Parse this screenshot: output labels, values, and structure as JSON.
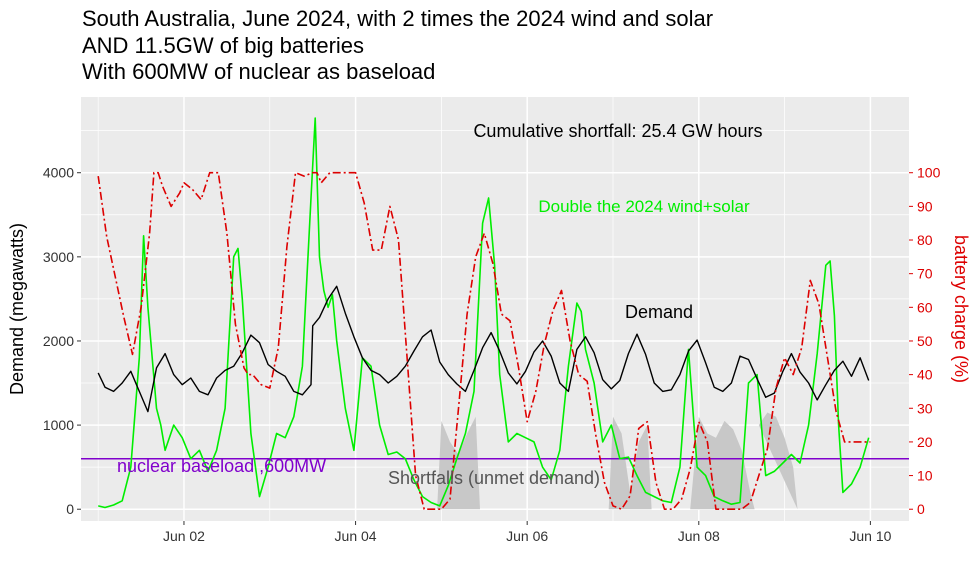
{
  "chart_data": {
    "type": "line",
    "title": [
      "South Australia, June 2024, with 2 times the 2024 wind and solar",
      "AND 11.5GW of big batteries",
      "With 600MW of nuclear as baseload"
    ],
    "xlabel": "",
    "ylabel": "Demand (megawatts)",
    "y2label": "battery charge (%)",
    "x_ticks": [
      "Jun 02",
      "Jun 04",
      "Jun 06",
      "Jun 08",
      "Jun 10"
    ],
    "x_range_days": [
      0.8,
      10.45
    ],
    "ylim": [
      -140,
      4900
    ],
    "y_ticks": [
      0,
      1000,
      2000,
      3000,
      4000
    ],
    "y2_ticks": [
      0,
      10,
      20,
      30,
      40,
      50,
      60,
      70,
      80,
      90,
      100
    ],
    "y2_scale_mw_per_percent": 40,
    "grid": true,
    "colors": {
      "panel": "#ebebeb",
      "grid": "#ffffff",
      "demand": "#000000",
      "wind_solar": "#00ee00",
      "battery": "#dd0000",
      "nuclear": "#8000cc",
      "shortfall": "#c8c8c8",
      "shortfall_label": "#555555"
    },
    "annotations": {
      "shortfall_total": "Cumulative shortfall: 25.4 GW hours",
      "wind_solar": "Double the 2024 wind+solar",
      "demand": "Demand",
      "nuclear": "nuclear baseload ,600MW",
      "shortfalls": "Shortfalls (unmet demand)"
    },
    "nuclear_baseload_mw": 600,
    "series": [
      {
        "name": "Demand",
        "x": [
          1.0,
          1.08,
          1.18,
          1.28,
          1.38,
          1.48,
          1.58,
          1.68,
          1.78,
          1.88,
          1.98,
          2.08,
          2.18,
          2.28,
          2.38,
          2.48,
          2.58,
          2.68,
          2.78,
          2.88,
          2.98,
          3.08,
          3.18,
          3.28,
          3.38,
          3.48,
          3.5,
          3.58,
          3.68,
          3.78,
          3.88,
          3.98,
          4.08,
          4.18,
          4.28,
          4.38,
          4.48,
          4.58,
          4.68,
          4.78,
          4.88,
          4.98,
          5.08,
          5.18,
          5.28,
          5.38,
          5.48,
          5.58,
          5.68,
          5.78,
          5.88,
          5.98,
          6.08,
          6.18,
          6.28,
          6.38,
          6.48,
          6.58,
          6.68,
          6.78,
          6.88,
          6.98,
          7.08,
          7.18,
          7.28,
          7.38,
          7.48,
          7.58,
          7.68,
          7.78,
          7.88,
          7.98,
          8.08,
          8.18,
          8.28,
          8.38,
          8.48,
          8.58,
          8.68,
          8.78,
          8.88,
          8.98,
          9.08,
          9.18,
          9.28,
          9.38,
          9.48,
          9.58,
          9.68,
          9.78,
          9.88,
          9.98
        ],
        "values": [
          1620,
          1450,
          1400,
          1500,
          1640,
          1400,
          1160,
          1680,
          1850,
          1600,
          1480,
          1560,
          1400,
          1360,
          1560,
          1650,
          1700,
          1860,
          2070,
          1980,
          1720,
          1640,
          1580,
          1400,
          1360,
          1480,
          2180,
          2280,
          2500,
          2650,
          2330,
          2050,
          1800,
          1650,
          1600,
          1500,
          1580,
          1700,
          1880,
          2050,
          2130,
          1750,
          1600,
          1490,
          1400,
          1650,
          1920,
          2100,
          1880,
          1620,
          1490,
          1640,
          1870,
          2000,
          1820,
          1500,
          1400,
          1900,
          2050,
          1860,
          1540,
          1430,
          1530,
          1850,
          2080,
          1840,
          1500,
          1400,
          1420,
          1600,
          1880,
          2010,
          1740,
          1450,
          1400,
          1500,
          1820,
          1780,
          1550,
          1330,
          1380,
          1640,
          1850,
          1630,
          1500,
          1300,
          1480,
          1650,
          1760,
          1580,
          1800,
          1530
        ]
      },
      {
        "name": "Double the 2024 wind+solar",
        "x": [
          1.0,
          1.08,
          1.18,
          1.28,
          1.38,
          1.48,
          1.53,
          1.58,
          1.63,
          1.68,
          1.73,
          1.78,
          1.88,
          1.98,
          2.08,
          2.18,
          2.28,
          2.38,
          2.48,
          2.58,
          2.63,
          2.68,
          2.78,
          2.88,
          2.98,
          3.08,
          3.18,
          3.28,
          3.38,
          3.42,
          3.48,
          3.53,
          3.58,
          3.63,
          3.68,
          3.73,
          3.78,
          3.88,
          3.98,
          4.08,
          4.18,
          4.28,
          4.38,
          4.48,
          4.58,
          4.68,
          4.78,
          4.88,
          4.98,
          5.08,
          5.18,
          5.28,
          5.38,
          5.48,
          5.55,
          5.62,
          5.68,
          5.78,
          5.88,
          5.98,
          6.08,
          6.18,
          6.28,
          6.38,
          6.48,
          6.58,
          6.63,
          6.68,
          6.78,
          6.88,
          6.98,
          7.08,
          7.18,
          7.28,
          7.38,
          7.48,
          7.58,
          7.68,
          7.78,
          7.88,
          7.98,
          8.08,
          8.18,
          8.28,
          8.38,
          8.48,
          8.58,
          8.68,
          8.78,
          8.88,
          8.98,
          9.08,
          9.18,
          9.28,
          9.38,
          9.48,
          9.53,
          9.58,
          9.63,
          9.68,
          9.78,
          9.88,
          9.98
        ],
        "values": [
          40,
          20,
          50,
          100,
          500,
          1800,
          3250,
          2400,
          1800,
          1200,
          1000,
          700,
          1000,
          850,
          600,
          700,
          450,
          700,
          1200,
          3000,
          3100,
          2500,
          900,
          150,
          500,
          900,
          850,
          1100,
          1700,
          2500,
          3700,
          4650,
          3000,
          2600,
          2400,
          2550,
          2000,
          1200,
          700,
          1800,
          1700,
          1000,
          650,
          680,
          600,
          350,
          150,
          80,
          40,
          280,
          600,
          900,
          1400,
          3400,
          3700,
          2900,
          1600,
          800,
          900,
          850,
          800,
          500,
          350,
          700,
          1700,
          2450,
          2350,
          1900,
          1500,
          800,
          1000,
          600,
          620,
          400,
          200,
          150,
          100,
          80,
          500,
          1900,
          500,
          400,
          150,
          100,
          60,
          80,
          1500,
          1600,
          400,
          450,
          550,
          650,
          550,
          1000,
          1850,
          2900,
          2950,
          2300,
          1000,
          200,
          300,
          500,
          850
        ]
      },
      {
        "name": "battery charge",
        "x": [
          1.0,
          1.1,
          1.2,
          1.3,
          1.4,
          1.5,
          1.6,
          1.65,
          1.7,
          1.75,
          1.85,
          1.95,
          2.0,
          2.1,
          2.2,
          2.3,
          2.35,
          2.4,
          2.5,
          2.6,
          2.7,
          2.75,
          2.8,
          2.9,
          3.0,
          3.1,
          3.2,
          3.3,
          3.4,
          3.5,
          3.55,
          3.6,
          3.7,
          3.8,
          3.9,
          4.0,
          4.1,
          4.2,
          4.3,
          4.4,
          4.5,
          4.6,
          4.7,
          4.8,
          4.9,
          5.0,
          5.1,
          5.2,
          5.3,
          5.4,
          5.5,
          5.6,
          5.7,
          5.8,
          5.9,
          6.0,
          6.1,
          6.2,
          6.3,
          6.4,
          6.5,
          6.6,
          6.7,
          6.8,
          6.9,
          7.0,
          7.1,
          7.2,
          7.3,
          7.4,
          7.5,
          7.6,
          7.7,
          7.8,
          7.9,
          8.0,
          8.1,
          8.2,
          8.3,
          8.4,
          8.5,
          8.6,
          8.7,
          8.8,
          8.9,
          9.0,
          9.1,
          9.2,
          9.3,
          9.4,
          9.5,
          9.6,
          9.7,
          9.8,
          9.9,
          10.0
        ],
        "values": [
          99,
          81,
          69,
          57,
          46,
          60,
          82,
          100,
          100,
          96,
          90,
          94,
          97,
          95,
          92,
          100,
          100,
          100,
          82,
          55,
          42,
          40,
          40,
          37,
          36,
          48,
          78,
          100,
          99,
          100,
          100,
          97,
          100,
          100,
          100,
          100,
          91,
          77,
          77,
          90,
          80,
          45,
          10,
          0,
          0,
          0,
          3,
          30,
          58,
          75,
          82,
          73,
          58,
          56,
          42,
          26,
          35,
          49,
          59,
          65,
          50,
          40,
          38,
          22,
          8,
          1,
          0,
          4,
          24,
          26,
          8,
          0,
          0,
          3,
          12,
          26,
          20,
          0,
          0,
          0,
          0,
          2,
          10,
          18,
          36,
          45,
          40,
          48,
          68,
          61,
          45,
          29,
          20,
          20,
          20,
          20
        ]
      },
      {
        "name": "Shortfalls (unmet demand)",
        "x": [
          4.95,
          5.0,
          5.1,
          5.2,
          5.3,
          5.4,
          5.45,
          6.95,
          7.0,
          7.1,
          7.2,
          7.3,
          7.4,
          7.45,
          7.9,
          8.0,
          8.1,
          8.2,
          8.3,
          8.4,
          8.5,
          8.6,
          8.65,
          8.7,
          8.8,
          8.9,
          9.0,
          9.1,
          9.15
        ],
        "values": [
          0,
          1050,
          800,
          650,
          900,
          1100,
          0,
          0,
          1100,
          900,
          200,
          800,
          1000,
          0,
          0,
          1100,
          900,
          850,
          1050,
          950,
          700,
          200,
          0,
          1000,
          1150,
          1100,
          850,
          500,
          0
        ]
      }
    ]
  }
}
